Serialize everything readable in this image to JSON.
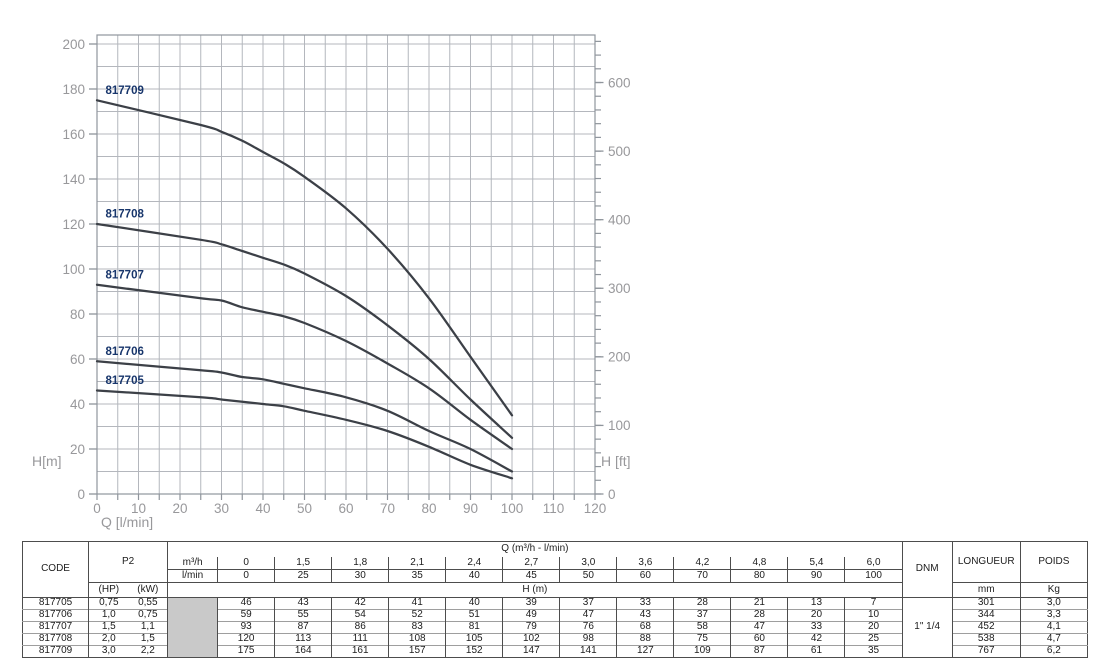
{
  "chart": {
    "x_axis_title": "Q [l/min]",
    "y_left_axis_title": "H[m]",
    "y_right_axis_title": "H [ft]",
    "colors": {
      "curve": "#3c4047",
      "curve_label": "#17356b",
      "grid": "#b4b7bd",
      "axis": "#8f959c",
      "tick_label": "#98989b"
    }
  },
  "chart_data": {
    "type": "line",
    "title": "",
    "xlabel": "Q [l/min]",
    "ylabel_left": "H[m]",
    "ylabel_right": "H [ft]",
    "xlim": [
      0,
      120
    ],
    "ylim_left_m": [
      0,
      200
    ],
    "ylim_right_ft": [
      0,
      600
    ],
    "grid": true,
    "x_grid_step": 5,
    "x_tick_label_step": 10,
    "y_grid_step_m": 10,
    "y_tick_label_step_m": 20,
    "y_right_tick_step_ft": 20,
    "y_right_label_step_ft": 100,
    "x": [
      0,
      25,
      30,
      35,
      40,
      45,
      50,
      60,
      70,
      80,
      90,
      100
    ],
    "series": [
      {
        "name": "817705",
        "values": [
          46,
          43,
          42,
          41,
          40,
          39,
          37,
          33,
          28,
          21,
          13,
          7
        ]
      },
      {
        "name": "817706",
        "values": [
          59,
          55,
          54,
          52,
          51,
          49,
          47,
          43,
          37,
          28,
          20,
          10
        ]
      },
      {
        "name": "817707",
        "values": [
          93,
          87,
          86,
          83,
          81,
          79,
          76,
          68,
          58,
          47,
          33,
          20
        ]
      },
      {
        "name": "817708",
        "values": [
          120,
          113,
          111,
          108,
          105,
          102,
          98,
          88,
          75,
          60,
          42,
          25
        ]
      },
      {
        "name": "817709",
        "values": [
          175,
          164,
          161,
          157,
          152,
          147,
          141,
          127,
          109,
          87,
          61,
          35
        ]
      }
    ]
  },
  "table": {
    "code_header": "CODE",
    "p2_header": "P2",
    "hp_header": "(HP)",
    "kw_header": "(kW)",
    "q_title": "Q (m³/h - l/min)",
    "m3h_label": "m³/h",
    "lmin_label": "l/min",
    "hm_label": "H (m)",
    "dnm_header": "DNM",
    "longueur_header": "LONGUEUR",
    "poids_header": "POIDS",
    "mm_label": "mm",
    "kg_label": "Kg",
    "m3h_values": [
      "0",
      "1,5",
      "1,8",
      "2,1",
      "2,4",
      "2,7",
      "3,0",
      "3,6",
      "4,2",
      "4,8",
      "5,4",
      "6,0"
    ],
    "lmin_values": [
      "0",
      "25",
      "30",
      "35",
      "40",
      "45",
      "50",
      "60",
      "70",
      "80",
      "90",
      "100"
    ],
    "dnm_value": "1\" 1/4",
    "rows": [
      {
        "code": "817705",
        "hp": "0,75",
        "kw": "0,55",
        "h": [
          "46",
          "43",
          "42",
          "41",
          "40",
          "39",
          "37",
          "33",
          "28",
          "21",
          "13",
          "7"
        ],
        "longueur": "301",
        "poids": "3,0"
      },
      {
        "code": "817706",
        "hp": "1,0",
        "kw": "0,75",
        "h": [
          "59",
          "55",
          "54",
          "52",
          "51",
          "49",
          "47",
          "43",
          "37",
          "28",
          "20",
          "10"
        ],
        "longueur": "344",
        "poids": "3,3"
      },
      {
        "code": "817707",
        "hp": "1,5",
        "kw": "1,1",
        "h": [
          "93",
          "87",
          "86",
          "83",
          "81",
          "79",
          "76",
          "68",
          "58",
          "47",
          "33",
          "20"
        ],
        "longueur": "452",
        "poids": "4,1"
      },
      {
        "code": "817708",
        "hp": "2,0",
        "kw": "1,5",
        "h": [
          "120",
          "113",
          "111",
          "108",
          "105",
          "102",
          "98",
          "88",
          "75",
          "60",
          "42",
          "25"
        ],
        "longueur": "538",
        "poids": "4,7"
      },
      {
        "code": "817709",
        "hp": "3,0",
        "kw": "2,2",
        "h": [
          "175",
          "164",
          "161",
          "157",
          "152",
          "147",
          "141",
          "127",
          "109",
          "87",
          "61",
          "35"
        ],
        "longueur": "767",
        "poids": "6,2"
      }
    ]
  }
}
